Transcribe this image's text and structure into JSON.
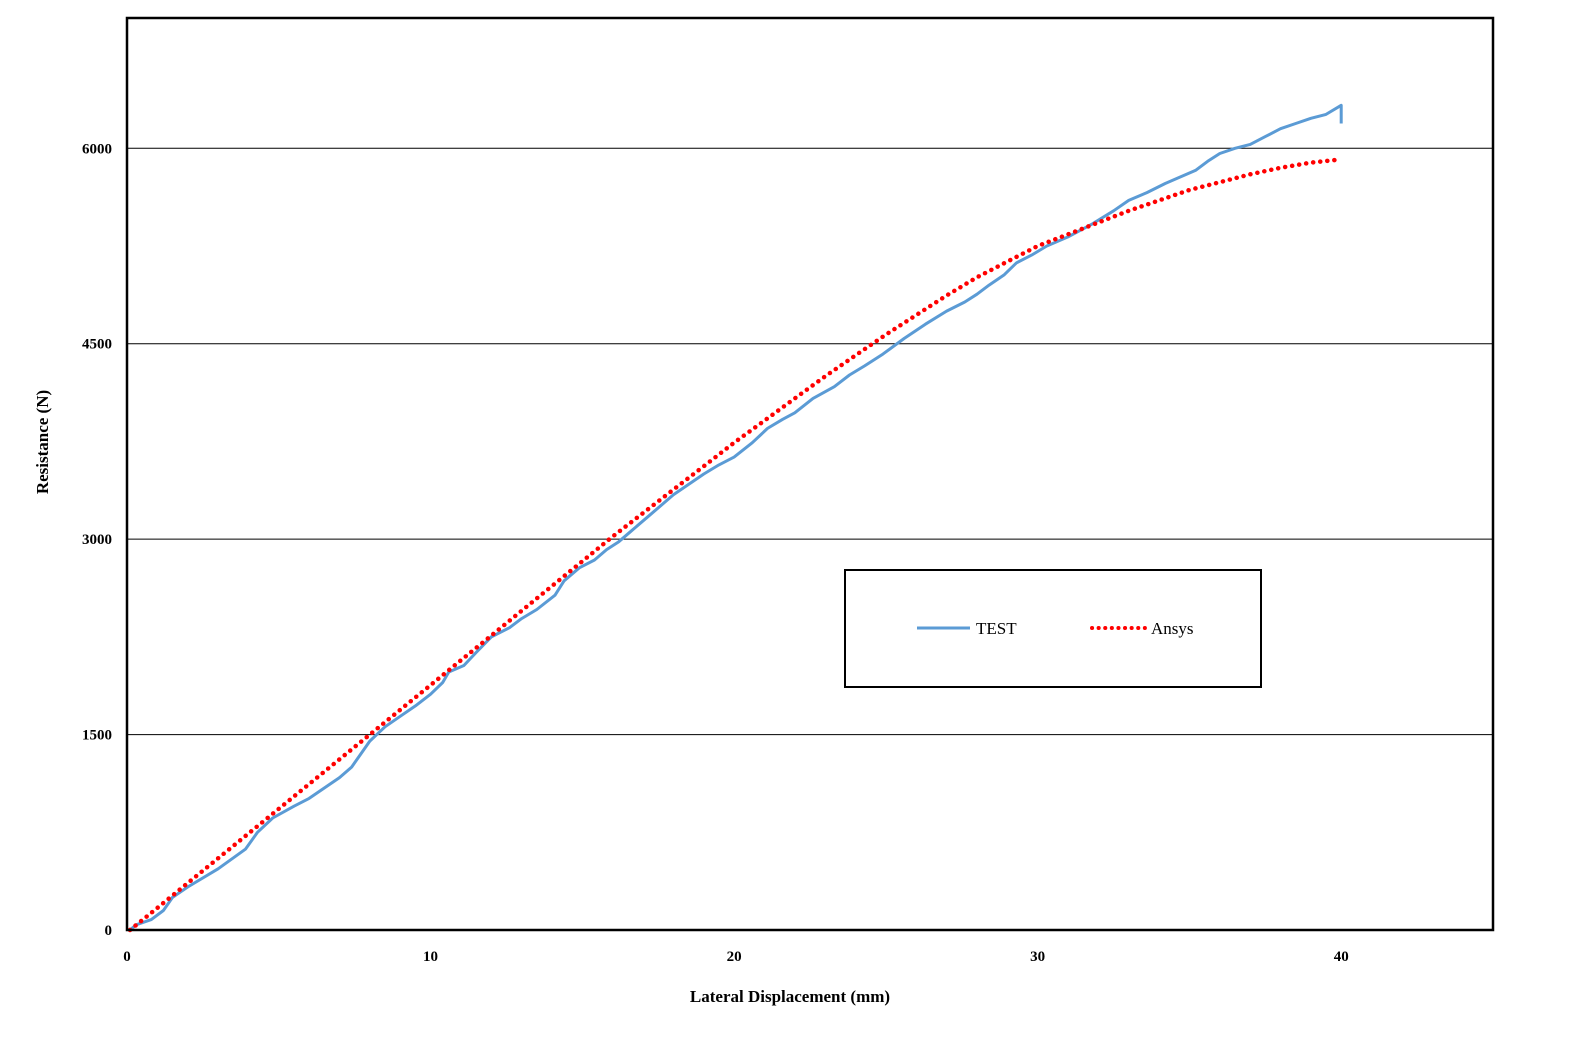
{
  "chart_data": {
    "type": "line",
    "title": "",
    "xlabel": "Lateral Displacement (mm)",
    "ylabel": "Resistance (N)",
    "xlim": [
      0,
      45
    ],
    "ylim": [
      0,
      7000
    ],
    "xticks": [
      0,
      10,
      20,
      30,
      40
    ],
    "yticks": [
      0,
      1500,
      3000,
      4500,
      6000
    ],
    "grid": "horizontal",
    "legend_position": "lower-right (inside plot)",
    "series": [
      {
        "name": "TEST",
        "style": "solid",
        "color": "#5b9bd5",
        "points": [
          [
            0.1,
            0
          ],
          [
            0.3,
            40
          ],
          [
            0.8,
            80
          ],
          [
            1.2,
            150
          ],
          [
            1.5,
            250
          ],
          [
            2.0,
            330
          ],
          [
            3.0,
            470
          ],
          [
            3.9,
            620
          ],
          [
            4.3,
            750
          ],
          [
            4.8,
            860
          ],
          [
            5.5,
            950
          ],
          [
            6.0,
            1010
          ],
          [
            6.5,
            1090
          ],
          [
            7.0,
            1170
          ],
          [
            7.4,
            1250
          ],
          [
            7.7,
            1350
          ],
          [
            8.0,
            1450
          ],
          [
            8.5,
            1560
          ],
          [
            9.0,
            1640
          ],
          [
            9.5,
            1720
          ],
          [
            10.0,
            1810
          ],
          [
            10.4,
            1900
          ],
          [
            10.6,
            1980
          ],
          [
            11.1,
            2030
          ],
          [
            11.5,
            2130
          ],
          [
            12.0,
            2250
          ],
          [
            12.6,
            2320
          ],
          [
            13.0,
            2390
          ],
          [
            13.5,
            2460
          ],
          [
            14.1,
            2570
          ],
          [
            14.4,
            2680
          ],
          [
            14.9,
            2780
          ],
          [
            15.4,
            2840
          ],
          [
            15.8,
            2920
          ],
          [
            16.2,
            2980
          ],
          [
            16.6,
            3060
          ],
          [
            17.2,
            3180
          ],
          [
            18.0,
            3340
          ],
          [
            18.5,
            3420
          ],
          [
            19.0,
            3500
          ],
          [
            19.5,
            3570
          ],
          [
            20.0,
            3630
          ],
          [
            20.6,
            3740
          ],
          [
            21.1,
            3850
          ],
          [
            21.6,
            3920
          ],
          [
            22.0,
            3970
          ],
          [
            22.6,
            4080
          ],
          [
            23.3,
            4170
          ],
          [
            23.8,
            4260
          ],
          [
            24.3,
            4330
          ],
          [
            24.9,
            4420
          ],
          [
            25.6,
            4540
          ],
          [
            26.3,
            4650
          ],
          [
            27.0,
            4750
          ],
          [
            27.6,
            4820
          ],
          [
            28.0,
            4880
          ],
          [
            28.4,
            4950
          ],
          [
            28.9,
            5030
          ],
          [
            29.3,
            5120
          ],
          [
            29.8,
            5180
          ],
          [
            30.3,
            5250
          ],
          [
            31.0,
            5320
          ],
          [
            31.8,
            5420
          ],
          [
            32.5,
            5520
          ],
          [
            33.0,
            5600
          ],
          [
            33.6,
            5660
          ],
          [
            34.2,
            5730
          ],
          [
            34.6,
            5770
          ],
          [
            35.2,
            5830
          ],
          [
            35.6,
            5900
          ],
          [
            36.0,
            5960
          ],
          [
            36.5,
            6000
          ],
          [
            37.0,
            6030
          ],
          [
            37.5,
            6090
          ],
          [
            38.0,
            6150
          ],
          [
            38.5,
            6190
          ],
          [
            39.0,
            6230
          ],
          [
            39.5,
            6260
          ],
          [
            40.0,
            6330
          ],
          [
            40.0,
            6190
          ]
        ]
      },
      {
        "name": "Ansys",
        "style": "dotted",
        "color": "#ff0000",
        "points": [
          [
            0.1,
            0
          ],
          [
            1.0,
            170
          ],
          [
            2.0,
            360
          ],
          [
            3.0,
            550
          ],
          [
            4.0,
            740
          ],
          [
            5.0,
            930
          ],
          [
            6.0,
            1120
          ],
          [
            7.0,
            1310
          ],
          [
            8.0,
            1500
          ],
          [
            9.0,
            1690
          ],
          [
            10.0,
            1880
          ],
          [
            11.0,
            2070
          ],
          [
            12.0,
            2260
          ],
          [
            13.0,
            2450
          ],
          [
            14.0,
            2640
          ],
          [
            15.0,
            2830
          ],
          [
            16.0,
            3020
          ],
          [
            17.0,
            3200
          ],
          [
            18.0,
            3380
          ],
          [
            19.0,
            3560
          ],
          [
            20.0,
            3740
          ],
          [
            21.0,
            3910
          ],
          [
            22.0,
            4080
          ],
          [
            23.0,
            4250
          ],
          [
            24.0,
            4410
          ],
          [
            25.0,
            4570
          ],
          [
            26.0,
            4720
          ],
          [
            27.0,
            4870
          ],
          [
            28.0,
            5010
          ],
          [
            29.0,
            5130
          ],
          [
            30.0,
            5250
          ],
          [
            31.0,
            5340
          ],
          [
            32.0,
            5430
          ],
          [
            33.0,
            5520
          ],
          [
            34.0,
            5600
          ],
          [
            35.0,
            5680
          ],
          [
            36.0,
            5740
          ],
          [
            37.0,
            5800
          ],
          [
            38.0,
            5850
          ],
          [
            39.0,
            5890
          ],
          [
            39.8,
            5910
          ]
        ]
      }
    ]
  }
}
